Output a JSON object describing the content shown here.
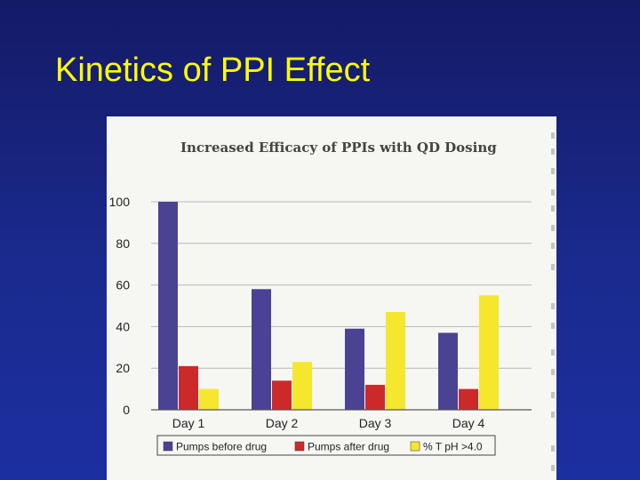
{
  "slide": {
    "title": "Kinetics of PPI Effect"
  },
  "chart_data": {
    "type": "bar",
    "title": "Increased Efficacy of PPIs with QD Dosing",
    "categories": [
      "Day 1",
      "Day 2",
      "Day 3",
      "Day 4"
    ],
    "series": [
      {
        "name": "Pumps before drug",
        "values": [
          100,
          58,
          39,
          37
        ],
        "color": "#4a4393"
      },
      {
        "name": "Pumps after drug",
        "values": [
          21,
          14,
          12,
          10
        ],
        "color": "#cc2a2a"
      },
      {
        "name": "% T pH >4.0",
        "values": [
          10,
          23,
          47,
          55
        ],
        "color": "#f5e72e"
      }
    ],
    "yticks": [
      0,
      20,
      40,
      60,
      80,
      100
    ],
    "ylim": [
      0,
      100
    ],
    "grid": true,
    "legend_position": "bottom"
  }
}
